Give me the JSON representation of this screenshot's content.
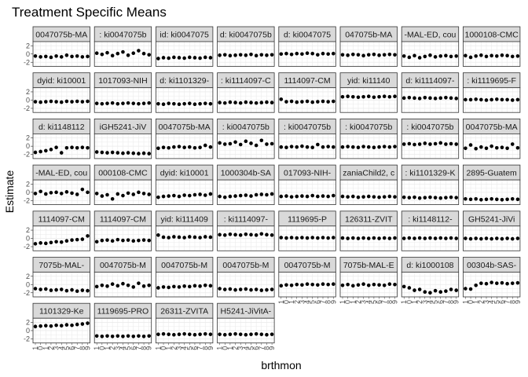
{
  "chart_data": {
    "type": "scatter",
    "title": "Treatment Specific Means",
    "xlabel": "brthmon",
    "ylabel": "Estimate",
    "ylim": [
      -3,
      3
    ],
    "y_ticks": [
      "2",
      "0",
      "-2"
    ],
    "x_tick_labels": [
      "1",
      "0",
      "1",
      "2",
      "3",
      "4",
      "5",
      "6",
      "7",
      "8",
      "9"
    ],
    "x_values": [
      1,
      2,
      3,
      4,
      5,
      6,
      7,
      8,
      9,
      10,
      11
    ],
    "grid": true,
    "legend": "none",
    "colors": {
      "strip_fill": "#d9d9d9",
      "strip_border": "#333333",
      "point": "#000000",
      "grid": "#ebebeb"
    },
    "panels": [
      {
        "strip": "0047075b-MA",
        "values": [
          -0.5,
          -0.7,
          -0.6,
          -0.8,
          -0.5,
          -0.7,
          -0.3,
          -0.6,
          -0.5,
          -0.7,
          -0.6
        ]
      },
      {
        "strip": ": ki0047075b",
        "values": [
          0.2,
          -0.1,
          0.3,
          -0.4,
          0.1,
          0.5,
          -0.3,
          0.2,
          0.8,
          0.1,
          -0.2
        ]
      },
      {
        "strip": "id: ki0047075",
        "values": [
          -1.1,
          -0.9,
          -1.0,
          -0.8,
          -0.9,
          -1.0,
          -0.8,
          -0.9,
          -1.0,
          -0.8,
          -0.9
        ]
      },
      {
        "strip": "d: ki0047075b",
        "values": [
          -0.3,
          -0.2,
          -0.4,
          -0.3,
          -0.2,
          -0.3,
          -0.1,
          -0.4,
          -0.2,
          -0.3,
          -0.2
        ]
      },
      {
        "strip": "d: ki0047075",
        "values": [
          0.0,
          0.1,
          -0.1,
          0.1,
          0.0,
          0.2,
          0.1,
          -0.2,
          0.1,
          0.0,
          0.1
        ]
      },
      {
        "strip": "047075b-MA",
        "values": [
          -0.2,
          -0.3,
          -0.1,
          -0.2,
          -0.4,
          -0.2,
          -0.1,
          -0.3,
          -0.2,
          -0.1,
          -0.2
        ]
      },
      {
        "strip": "-MAL-ED, cou",
        "values": [
          -0.5,
          -0.8,
          -0.4,
          -0.9,
          -0.6,
          -0.3,
          -0.7,
          -0.5,
          -0.4,
          -0.6,
          -0.5
        ]
      },
      {
        "strip": "1000108-CMC",
        "values": [
          -0.4,
          -0.8,
          -0.5,
          -0.3,
          -0.6,
          -0.4,
          -0.5,
          -0.3,
          -0.4,
          -0.6,
          -0.5
        ]
      },
      {
        "strip": "dyid: ki10001",
        "values": [
          -0.4,
          -0.5,
          -0.4,
          -0.3,
          -0.4,
          -0.5,
          -0.3,
          -0.4,
          -0.3,
          -0.4,
          -0.3
        ]
      },
      {
        "strip": "1017093-NIH",
        "values": [
          -0.8,
          -0.9,
          -0.8,
          -0.7,
          -0.9,
          -0.8,
          -0.7,
          -0.8,
          -0.9,
          -0.8,
          -0.7
        ]
      },
      {
        "strip": "d: ki1101329-",
        "values": [
          -0.9,
          -1.0,
          -0.8,
          -0.9,
          -1.0,
          -0.9,
          -0.8,
          -1.0,
          -0.9,
          -0.8,
          -0.9
        ]
      },
      {
        "strip": ": ki1114097-C",
        "values": [
          -0.6,
          -0.7,
          -0.5,
          -0.6,
          -0.7,
          -0.5,
          -0.6,
          -0.7,
          -0.6,
          -0.5,
          -0.6
        ]
      },
      {
        "strip": "1114097-CM",
        "values": [
          0.2,
          -0.4,
          -0.3,
          -0.5,
          -0.4,
          -0.3,
          -0.5,
          -0.4,
          -0.3,
          -0.4,
          -0.3
        ]
      },
      {
        "strip": "yid: ki11140",
        "values": [
          0.8,
          0.9,
          0.8,
          0.7,
          0.8,
          0.9,
          0.7,
          0.8,
          0.9,
          0.8,
          0.9
        ]
      },
      {
        "strip": "d: ki1114097-",
        "values": [
          0.5,
          0.6,
          0.5,
          0.4,
          0.6,
          0.5,
          0.4,
          0.5,
          0.6,
          0.5,
          0.4
        ]
      },
      {
        "strip": ": ki1119695-F",
        "values": [
          0.1,
          0.1,
          0.2,
          0.1,
          0.0,
          0.1,
          0.2,
          0.1,
          0.1,
          0.0,
          0.1
        ]
      },
      {
        "strip": "d: ki1148112",
        "values": [
          -1.5,
          -1.3,
          -1.1,
          -0.8,
          -0.3,
          -1.6,
          -0.4,
          -0.3,
          -0.4,
          -0.3,
          -0.4
        ]
      },
      {
        "strip": "iGH5241-JiV",
        "values": [
          -1.4,
          -1.5,
          -1.6,
          -1.5,
          -1.6,
          -1.7,
          -1.6,
          -1.7,
          -1.8,
          -1.7,
          -1.8
        ]
      },
      {
        "strip": "0047075b-MA",
        "values": [
          -0.5,
          -0.3,
          -0.4,
          -0.2,
          -0.1,
          -0.3,
          -0.2,
          -0.4,
          -0.3,
          0.2,
          -0.2
        ]
      },
      {
        "strip": ": ki0047075b",
        "values": [
          0.8,
          0.5,
          0.6,
          1.0,
          0.4,
          1.2,
          0.7,
          0.2,
          1.4,
          0.5,
          0.6
        ]
      },
      {
        "strip": ": ki0047075b",
        "values": [
          -0.2,
          -0.3,
          -0.1,
          -0.2,
          0.0,
          -0.2,
          -0.3,
          0.4,
          -0.2,
          -0.1,
          -0.2
        ]
      },
      {
        "strip": ": ki0047075b",
        "values": [
          -0.2,
          -0.1,
          -0.2,
          -0.3,
          -0.1,
          -0.2,
          -0.3,
          -0.2,
          -0.1,
          -0.2,
          -0.1
        ]
      },
      {
        "strip": ": ki0047075b",
        "values": [
          0.5,
          0.6,
          0.4,
          0.5,
          0.7,
          0.5,
          0.6,
          0.8,
          0.5,
          0.6,
          0.5
        ]
      },
      {
        "strip": "0047075b-MA",
        "values": [
          -0.5,
          0.3,
          -0.6,
          -0.2,
          -0.5,
          0.0,
          -0.4,
          -0.3,
          -0.5,
          0.5,
          -0.4
        ]
      },
      {
        "strip": "-MAL-ED, cou",
        "values": [
          -0.3,
          0.2,
          -0.4,
          -0.1,
          0.0,
          -0.3,
          0.1,
          -0.2,
          -0.5,
          0.7,
          0.0
        ]
      },
      {
        "strip": "000108-CMC",
        "values": [
          -0.3,
          -0.9,
          -0.6,
          -1.6,
          -0.4,
          -0.8,
          -0.2,
          -0.5,
          0.0,
          -0.3,
          -0.5
        ]
      },
      {
        "strip": "dyid: ki10001",
        "values": [
          -1.2,
          -1.0,
          -0.9,
          -0.8,
          -1.0,
          -0.7,
          -0.8,
          -0.6,
          -0.5,
          -0.7,
          -0.4
        ]
      },
      {
        "strip": "1000304b-SA",
        "values": [
          -1.0,
          -1.2,
          -1.0,
          -0.9,
          -0.8,
          -0.7,
          -0.9,
          -0.6,
          -0.5,
          -0.6,
          -0.4
        ]
      },
      {
        "strip": "017093-NIH-",
        "values": [
          -1.0,
          -0.9,
          -1.1,
          -1.0,
          -0.9,
          -1.0,
          -0.8,
          -1.0,
          -0.9,
          -1.0,
          -0.8
        ]
      },
      {
        "strip": "zaniaChild2, c",
        "values": [
          -1.0,
          -1.1,
          -1.0,
          -1.2,
          -1.1,
          -1.0,
          -1.1,
          -1.2,
          -1.1,
          -1.0,
          -1.1
        ]
      },
      {
        "strip": ": ki1101329-K",
        "values": [
          -1.2,
          -1.3,
          -1.2,
          -1.4,
          -1.3,
          -1.2,
          -1.3,
          -1.4,
          -1.3,
          -1.2,
          -1.3
        ]
      },
      {
        "strip": "2895-Guatem",
        "values": [
          -1.6,
          -1.7,
          -1.6,
          -1.8,
          -1.7,
          -1.6,
          -1.7,
          -1.8,
          -1.7,
          -1.6,
          -1.7
        ]
      },
      {
        "strip": "1114097-CM",
        "values": [
          -1.3,
          -1.1,
          -1.2,
          -1.0,
          -0.8,
          -0.9,
          -0.6,
          -0.4,
          -0.3,
          -0.2,
          0.6
        ]
      },
      {
        "strip": "1114097-CM",
        "values": [
          -0.8,
          -0.5,
          -0.4,
          -0.6,
          -0.3,
          -0.5,
          -0.4,
          -0.6,
          -0.5,
          -0.4,
          -0.5
        ]
      },
      {
        "strip": "yid: ki111409",
        "values": [
          0.8,
          0.3,
          0.2,
          0.4,
          0.3,
          0.2,
          0.4,
          0.3,
          0.2,
          0.4,
          0.3
        ]
      },
      {
        "strip": ": ki1114097-",
        "values": [
          0.9,
          0.8,
          1.0,
          0.9,
          0.8,
          1.0,
          0.9,
          0.8,
          1.1,
          0.9,
          0.8
        ]
      },
      {
        "strip": "1119695-P",
        "values": [
          0.2,
          0.1,
          0.2,
          0.1,
          0.2,
          0.1,
          0.2,
          0.1,
          0.2,
          0.1,
          0.2
        ]
      },
      {
        "strip": "126311-ZVIT",
        "values": [
          0.1,
          0.0,
          0.1,
          0.0,
          0.1,
          0.0,
          0.1,
          0.0,
          0.1,
          0.0,
          0.1
        ]
      },
      {
        "strip": ": ki1148112-",
        "values": [
          0.0,
          0.1,
          0.0,
          0.1,
          0.0,
          0.1,
          0.0,
          0.1,
          0.0,
          0.1,
          0.0
        ]
      },
      {
        "strip": "GH5241-JiVi",
        "values": [
          0.0,
          -0.1,
          0.0,
          -0.1,
          0.0,
          -0.1,
          0.0,
          -0.1,
          0.0,
          -0.1,
          0.0
        ]
      },
      {
        "strip": "7075b-MAL-",
        "values": [
          -1.0,
          -1.2,
          -1.1,
          -1.4,
          -1.3,
          -1.2,
          -1.5,
          -1.3,
          -1.6,
          -1.4,
          -1.5
        ]
      },
      {
        "strip": "0047075b-M",
        "values": [
          -0.5,
          -0.2,
          -0.4,
          0.1,
          -0.3,
          0.2,
          -0.2,
          -0.6,
          0.3,
          -0.4,
          -0.2
        ]
      },
      {
        "strip": "0047075b-M",
        "values": [
          -0.8,
          -0.6,
          -0.7,
          -0.5,
          -0.6,
          -0.4,
          -0.5,
          -0.3,
          -0.4,
          -0.2,
          -0.3
        ]
      },
      {
        "strip": "0047075b-M",
        "values": [
          -1.0,
          -1.2,
          -1.1,
          -1.3,
          -1.2,
          -1.1,
          -1.3,
          -1.2,
          -1.4,
          -1.3,
          -1.2
        ]
      },
      {
        "strip": "0047075b-M",
        "values": [
          -0.3,
          -0.1,
          -0.2,
          0.0,
          -0.1,
          0.1,
          0.0,
          -0.1,
          0.1,
          0.0,
          0.1
        ]
      },
      {
        "strip": "7075b-MAL-E",
        "values": [
          -0.2,
          0.0,
          -0.3,
          -0.1,
          0.1,
          -0.2,
          0.0,
          -0.1,
          -0.2,
          0.1,
          0.0
        ]
      },
      {
        "strip": "d: ki1000108",
        "values": [
          -0.5,
          -0.8,
          -1.4,
          -1.2,
          -1.8,
          -2.0,
          -1.5,
          -1.8,
          -1.6,
          -1.2,
          -1.4
        ]
      },
      {
        "strip": "00304b-SAS-",
        "values": [
          -1.0,
          -1.1,
          -0.2,
          0.3,
          0.2,
          0.5,
          0.3,
          0.4,
          0.2,
          0.3,
          0.4
        ]
      },
      {
        "strip": "1101329-Ke",
        "values": [
          1.0,
          1.1,
          1.2,
          1.1,
          1.3,
          1.2,
          1.4,
          1.3,
          1.5,
          1.6,
          1.8
        ]
      },
      {
        "strip": "1119695-PRO",
        "values": [
          -1.3,
          -1.4,
          -1.3,
          -1.4,
          -1.3,
          -1.4,
          -1.3,
          -1.4,
          -1.3,
          -1.4,
          -1.3
        ]
      },
      {
        "strip": "26311-ZVITA",
        "values": [
          -0.9,
          -0.8,
          -0.9,
          -1.0,
          -0.9,
          -0.8,
          -0.9,
          -1.0,
          -0.9,
          -0.8,
          -0.9
        ]
      },
      {
        "strip": "H5241-JiVitA-",
        "values": [
          -0.9,
          -1.0,
          -0.9,
          -0.8,
          -0.9,
          -1.0,
          -0.9,
          -0.8,
          -0.9,
          -1.0,
          -0.9
        ]
      }
    ]
  }
}
